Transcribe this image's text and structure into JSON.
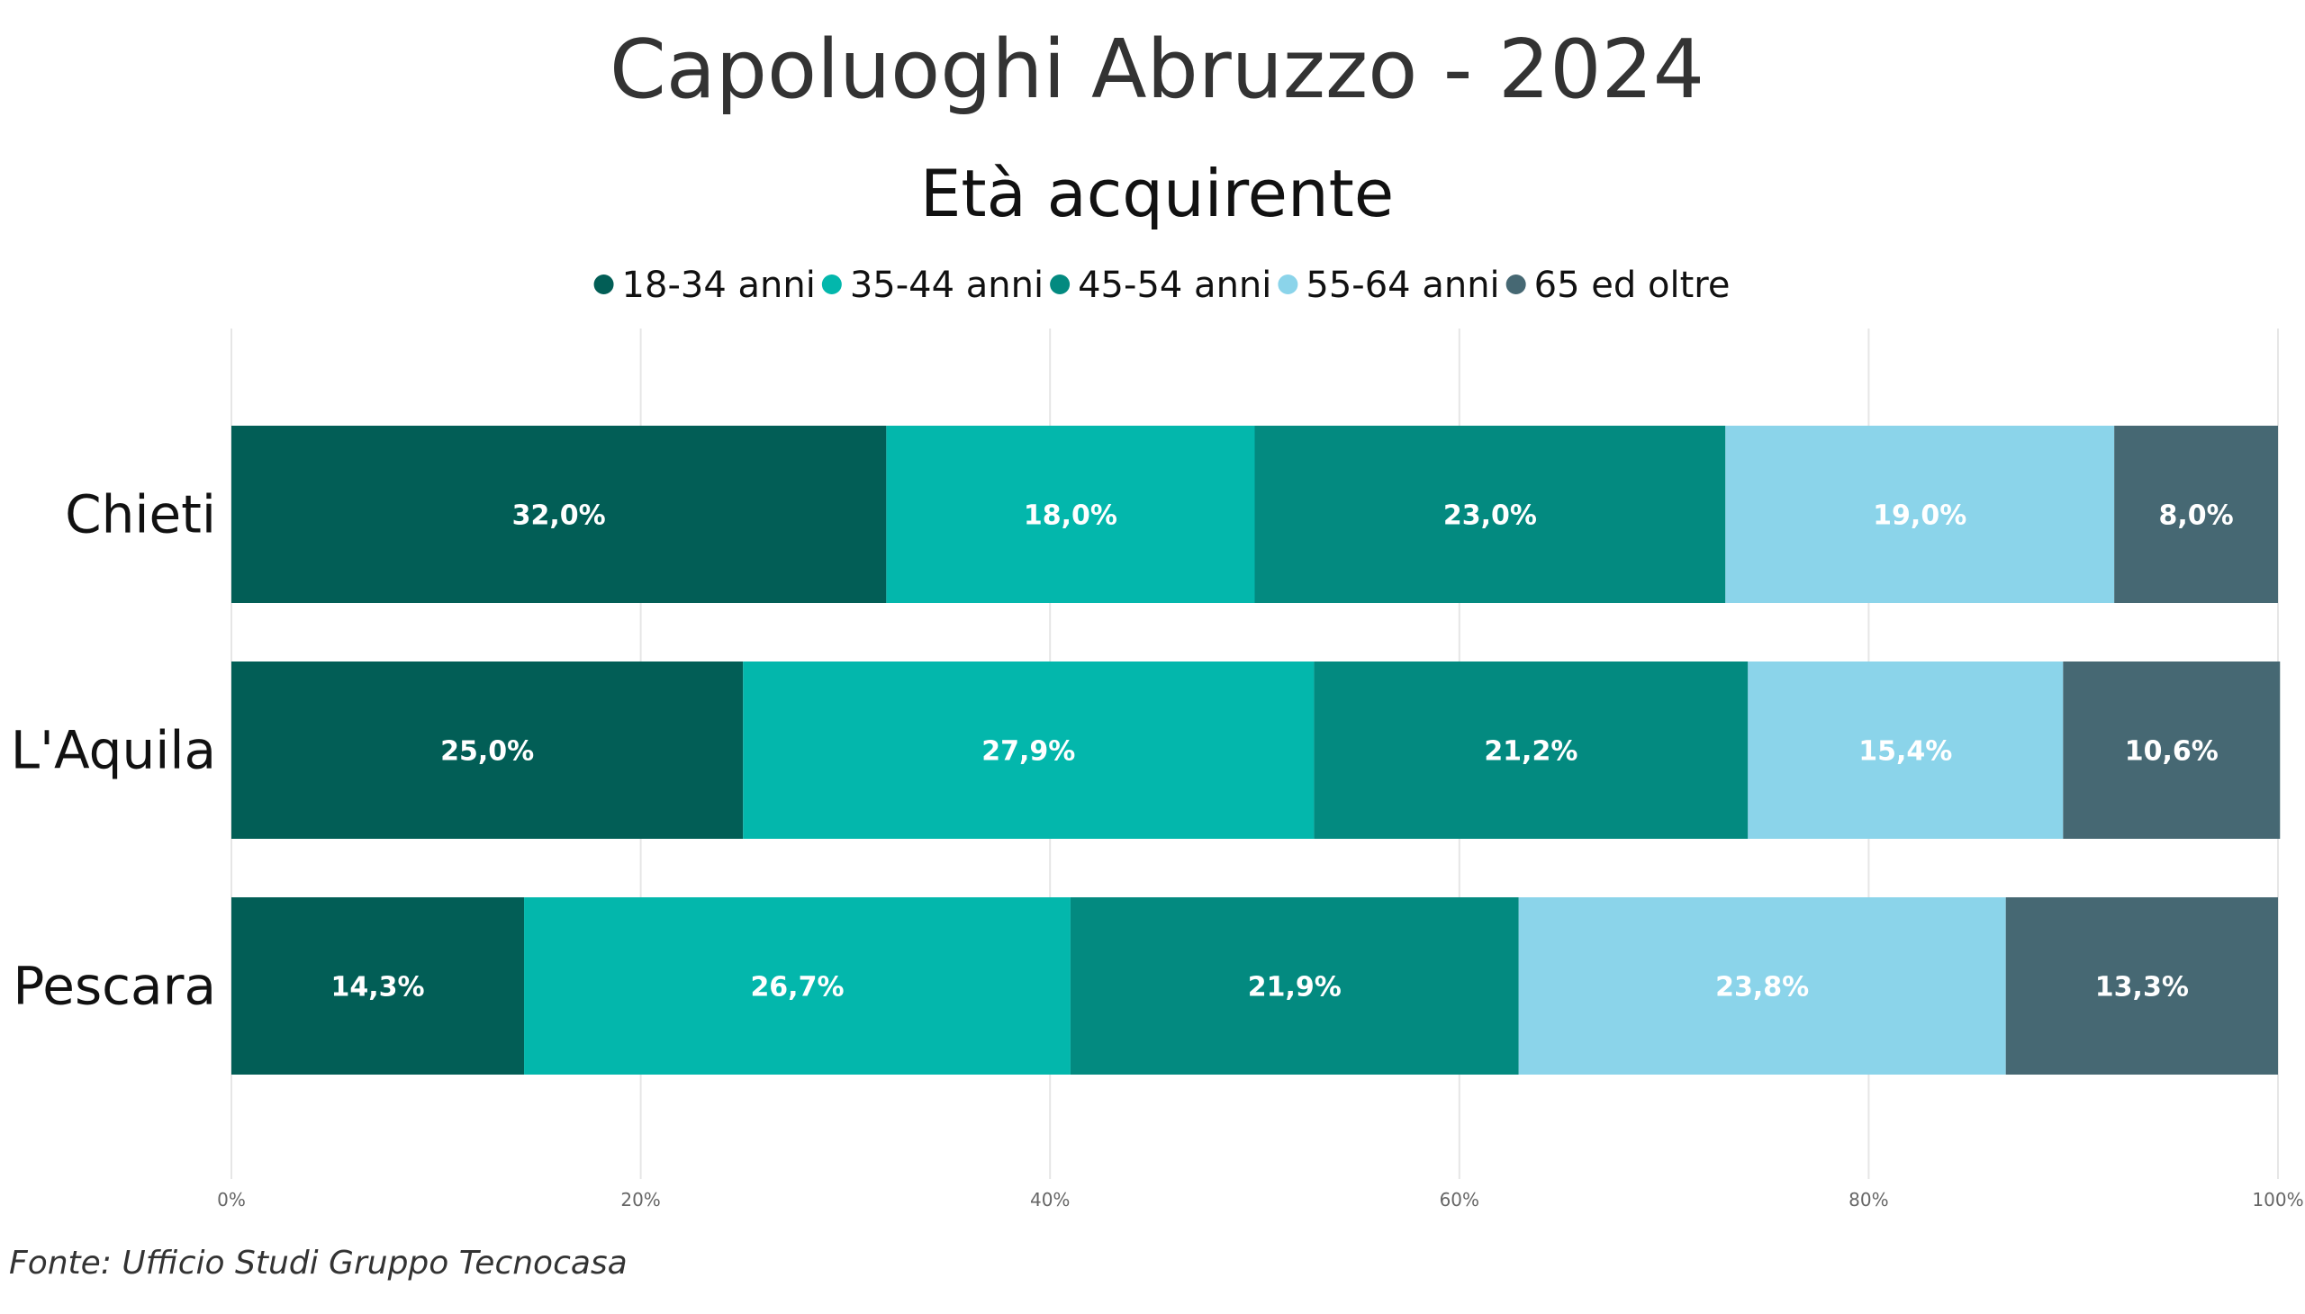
{
  "chart_data": {
    "type": "bar",
    "orientation": "horizontal",
    "stacked": "percent",
    "title": "Capoluoghi Abruzzo - 2024",
    "subtitle": "Età acquirente",
    "categories": [
      "Chieti",
      "L'Aquila",
      "Pescara"
    ],
    "series": [
      {
        "name": "18-34 anni",
        "color": "#025E56",
        "values": [
          32.0,
          25.0,
          14.3
        ],
        "labels": [
          "32,0%",
          "25,0%",
          "14,3%"
        ]
      },
      {
        "name": "35-44 anni",
        "color": "#03B7AC",
        "values": [
          18.0,
          27.9,
          26.7
        ],
        "labels": [
          "18,0%",
          "27,9%",
          "26,7%"
        ]
      },
      {
        "name": "45-54 anni",
        "color": "#038A80",
        "values": [
          23.0,
          21.2,
          21.9
        ],
        "labels": [
          "23,0%",
          "21,2%",
          "21,9%"
        ]
      },
      {
        "name": "55-64 anni",
        "color": "#8BD4EA",
        "values": [
          19.0,
          15.4,
          23.8
        ],
        "labels": [
          "19,0%",
          "15,4%",
          "23,8%"
        ]
      },
      {
        "name": "65 ed oltre",
        "color": "#466873",
        "values": [
          8.0,
          10.6,
          13.3
        ],
        "labels": [
          "8,0%",
          "10,6%",
          "13,3%"
        ]
      }
    ],
    "x_ticks": [
      "0%",
      "20%",
      "40%",
      "60%",
      "80%",
      "100%"
    ],
    "xlim": [
      0,
      100
    ],
    "legend_position": "top-center",
    "grid": true
  },
  "source": "Fonte: Ufficio Studi Gruppo Tecnocasa"
}
